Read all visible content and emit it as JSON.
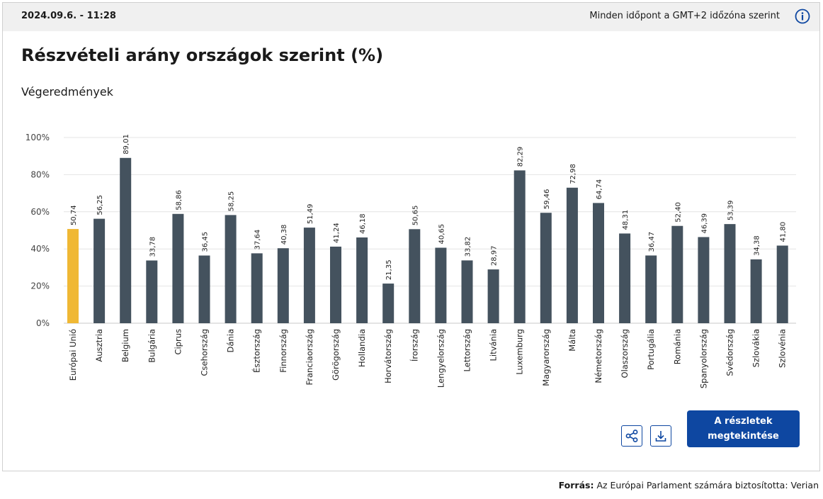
{
  "header": {
    "timestamp": "2024.09.6. - 11:28",
    "timezone_note": "Minden időpont a GMT+2 időzóna szerint"
  },
  "chart_data": {
    "type": "bar",
    "title": "Részvételi arány országok szerint (%)",
    "subtitle": "Végeredmények",
    "ylim": [
      0,
      100
    ],
    "yticks": [
      "0%",
      "20%",
      "40%",
      "60%",
      "80%",
      "100%"
    ],
    "grid": true,
    "highlight_color": "#f0b834",
    "bar_color": "#44525e",
    "categories": [
      "Európai Unió",
      "Ausztria",
      "Belgium",
      "Bulgária",
      "Ciprus",
      "Csehország",
      "Dánia",
      "Észtország",
      "Finnország",
      "Franciaország",
      "Görögország",
      "Hollandia",
      "Horvátország",
      "Írország",
      "Lengyelország",
      "Lettország",
      "Litvánia",
      "Luxemburg",
      "Magyarország",
      "Málta",
      "Németország",
      "Olaszország",
      "Portugália",
      "Románia",
      "Spanyolország",
      "Svédország",
      "Szlovákia",
      "Szlovénia"
    ],
    "values": [
      50.74,
      56.25,
      89.01,
      33.78,
      58.86,
      36.45,
      58.25,
      37.64,
      40.38,
      51.49,
      41.24,
      46.18,
      21.35,
      50.65,
      40.65,
      33.82,
      28.97,
      82.29,
      59.46,
      72.98,
      64.74,
      48.31,
      36.47,
      52.4,
      46.39,
      53.39,
      34.38,
      41.8
    ],
    "value_labels": [
      "50,74",
      "56,25",
      "89,01",
      "33,78",
      "58,86",
      "36,45",
      "58,25",
      "37,64",
      "40,38",
      "51,49",
      "41,24",
      "46,18",
      "21,35",
      "50,65",
      "40,65",
      "33,82",
      "28,97",
      "82,29",
      "59,46",
      "72,98",
      "64,74",
      "48,31",
      "36,47",
      "52,40",
      "46,39",
      "53,39",
      "34,38",
      "41,80"
    ]
  },
  "actions": {
    "share_icon": "share-icon",
    "download_icon": "download-icon",
    "details_label": "A részletek megtekintése"
  },
  "footer": {
    "source_label": "Forrás:",
    "source_text": "Az Európai Parlament számára biztosította: Verian"
  }
}
